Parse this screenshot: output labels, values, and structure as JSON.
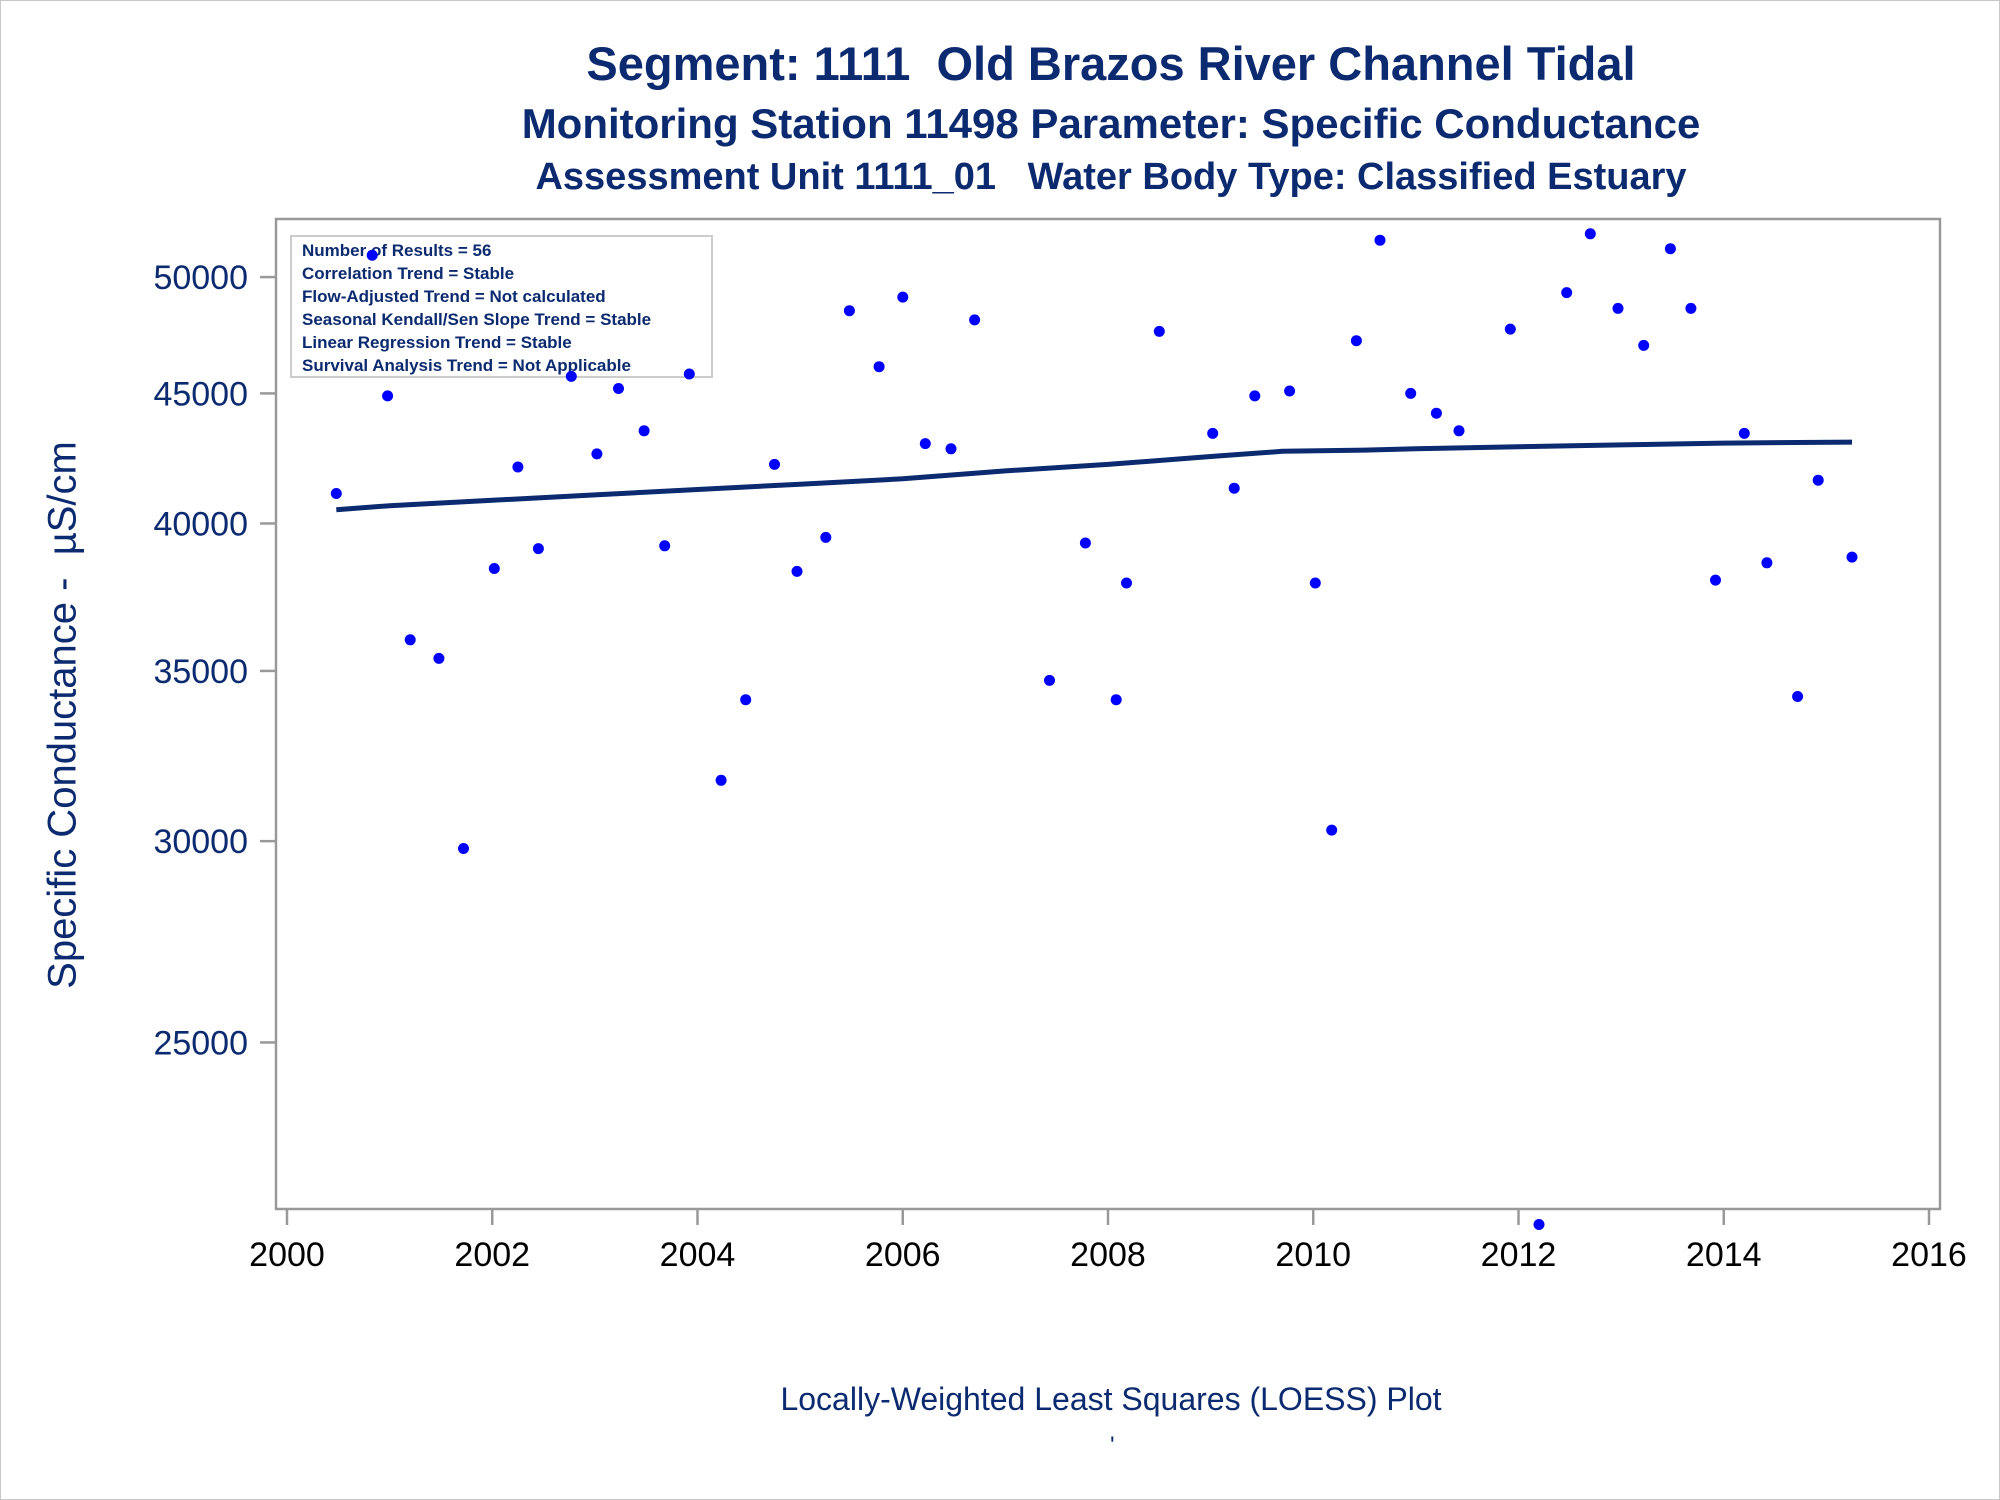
{
  "titles": {
    "line1": "Segment: 1111  Old Brazos River Channel Tidal",
    "line2": "Monitoring Station 11498 Parameter: Specific Conductance",
    "line3": "Assessment Unit 1111_01   Water Body Type: Classified Estuary"
  },
  "footnote": "Locally-Weighted Least Squares (LOESS) Plot",
  "tick_mark": "'",
  "colors": {
    "text": "#0b2a6f",
    "points": "#0000ff",
    "trend": "#0b2a6f",
    "axis": "#999999"
  },
  "chart_data": {
    "type": "scatter",
    "xlabel": "",
    "ylabel": "Specific Conductance -  µS/cm",
    "x_ticks": [
      2000,
      2002,
      2004,
      2006,
      2008,
      2010,
      2012,
      2014,
      2016
    ],
    "y_ticks": [
      25000,
      30000,
      35000,
      40000,
      45000,
      50000
    ],
    "xlim": [
      2000,
      2016
    ],
    "ylim": [
      21500,
      52700
    ],
    "y_scale": "log",
    "grid": false,
    "legend": {
      "placement": "top-left",
      "lines": [
        "Number of Results = 56",
        "Correlation Trend = Stable",
        "Flow-Adjusted Trend = Not calculated",
        "Seasonal Kendall/Sen Slope Trend = Stable",
        "Linear Regression Trend = Stable",
        "Survival Analysis Trend = Not Applicable"
      ]
    },
    "series": [
      {
        "type": "scatter",
        "points": [
          [
            2000.48,
            41100
          ],
          [
            2000.83,
            51000
          ],
          [
            2000.98,
            44900
          ],
          [
            2001.2,
            36000
          ],
          [
            2001.48,
            35400
          ],
          [
            2001.72,
            29800
          ],
          [
            2002.02,
            38400
          ],
          [
            2002.25,
            42100
          ],
          [
            2002.45,
            39100
          ],
          [
            2002.77,
            45700
          ],
          [
            2003.02,
            42600
          ],
          [
            2003.23,
            45200
          ],
          [
            2003.48,
            43500
          ],
          [
            2003.68,
            39200
          ],
          [
            2003.92,
            45800
          ],
          [
            2004.23,
            31700
          ],
          [
            2004.47,
            34100
          ],
          [
            2004.75,
            42200
          ],
          [
            2004.97,
            38300
          ],
          [
            2005.25,
            39500
          ],
          [
            2005.48,
            48500
          ],
          [
            2005.77,
            46100
          ],
          [
            2006.0,
            49100
          ],
          [
            2006.22,
            43000
          ],
          [
            2006.47,
            42800
          ],
          [
            2006.7,
            48100
          ],
          [
            2007.43,
            34700
          ],
          [
            2007.78,
            39300
          ],
          [
            2008.08,
            34100
          ],
          [
            2008.18,
            37900
          ],
          [
            2008.5,
            47600
          ],
          [
            2009.02,
            43400
          ],
          [
            2009.23,
            41300
          ],
          [
            2009.43,
            44900
          ],
          [
            2009.77,
            45100
          ],
          [
            2010.02,
            37900
          ],
          [
            2010.18,
            30300
          ],
          [
            2010.42,
            47200
          ],
          [
            2010.65,
            51700
          ],
          [
            2010.95,
            45000
          ],
          [
            2011.2,
            44200
          ],
          [
            2011.42,
            43500
          ],
          [
            2011.92,
            47700
          ],
          [
            2012.2,
            21200
          ],
          [
            2012.47,
            49300
          ],
          [
            2012.7,
            52000
          ],
          [
            2012.97,
            48600
          ],
          [
            2013.22,
            47000
          ],
          [
            2013.48,
            51300
          ],
          [
            2013.68,
            48600
          ],
          [
            2013.92,
            38000
          ],
          [
            2014.2,
            43400
          ],
          [
            2014.42,
            38600
          ],
          [
            2014.72,
            34200
          ],
          [
            2014.92,
            41600
          ],
          [
            2015.25,
            38800
          ]
        ]
      },
      {
        "type": "line",
        "points": [
          [
            2000.48,
            40500
          ],
          [
            2001.0,
            40650
          ],
          [
            2002.0,
            40850
          ],
          [
            2003.0,
            41050
          ],
          [
            2004.0,
            41250
          ],
          [
            2005.0,
            41450
          ],
          [
            2006.0,
            41650
          ],
          [
            2007.0,
            41950
          ],
          [
            2008.0,
            42200
          ],
          [
            2009.0,
            42500
          ],
          [
            2009.7,
            42700
          ],
          [
            2010.5,
            42750
          ],
          [
            2011.0,
            42800
          ],
          [
            2012.0,
            42880
          ],
          [
            2013.0,
            42950
          ],
          [
            2014.0,
            43020
          ],
          [
            2015.25,
            43060
          ]
        ]
      }
    ]
  }
}
